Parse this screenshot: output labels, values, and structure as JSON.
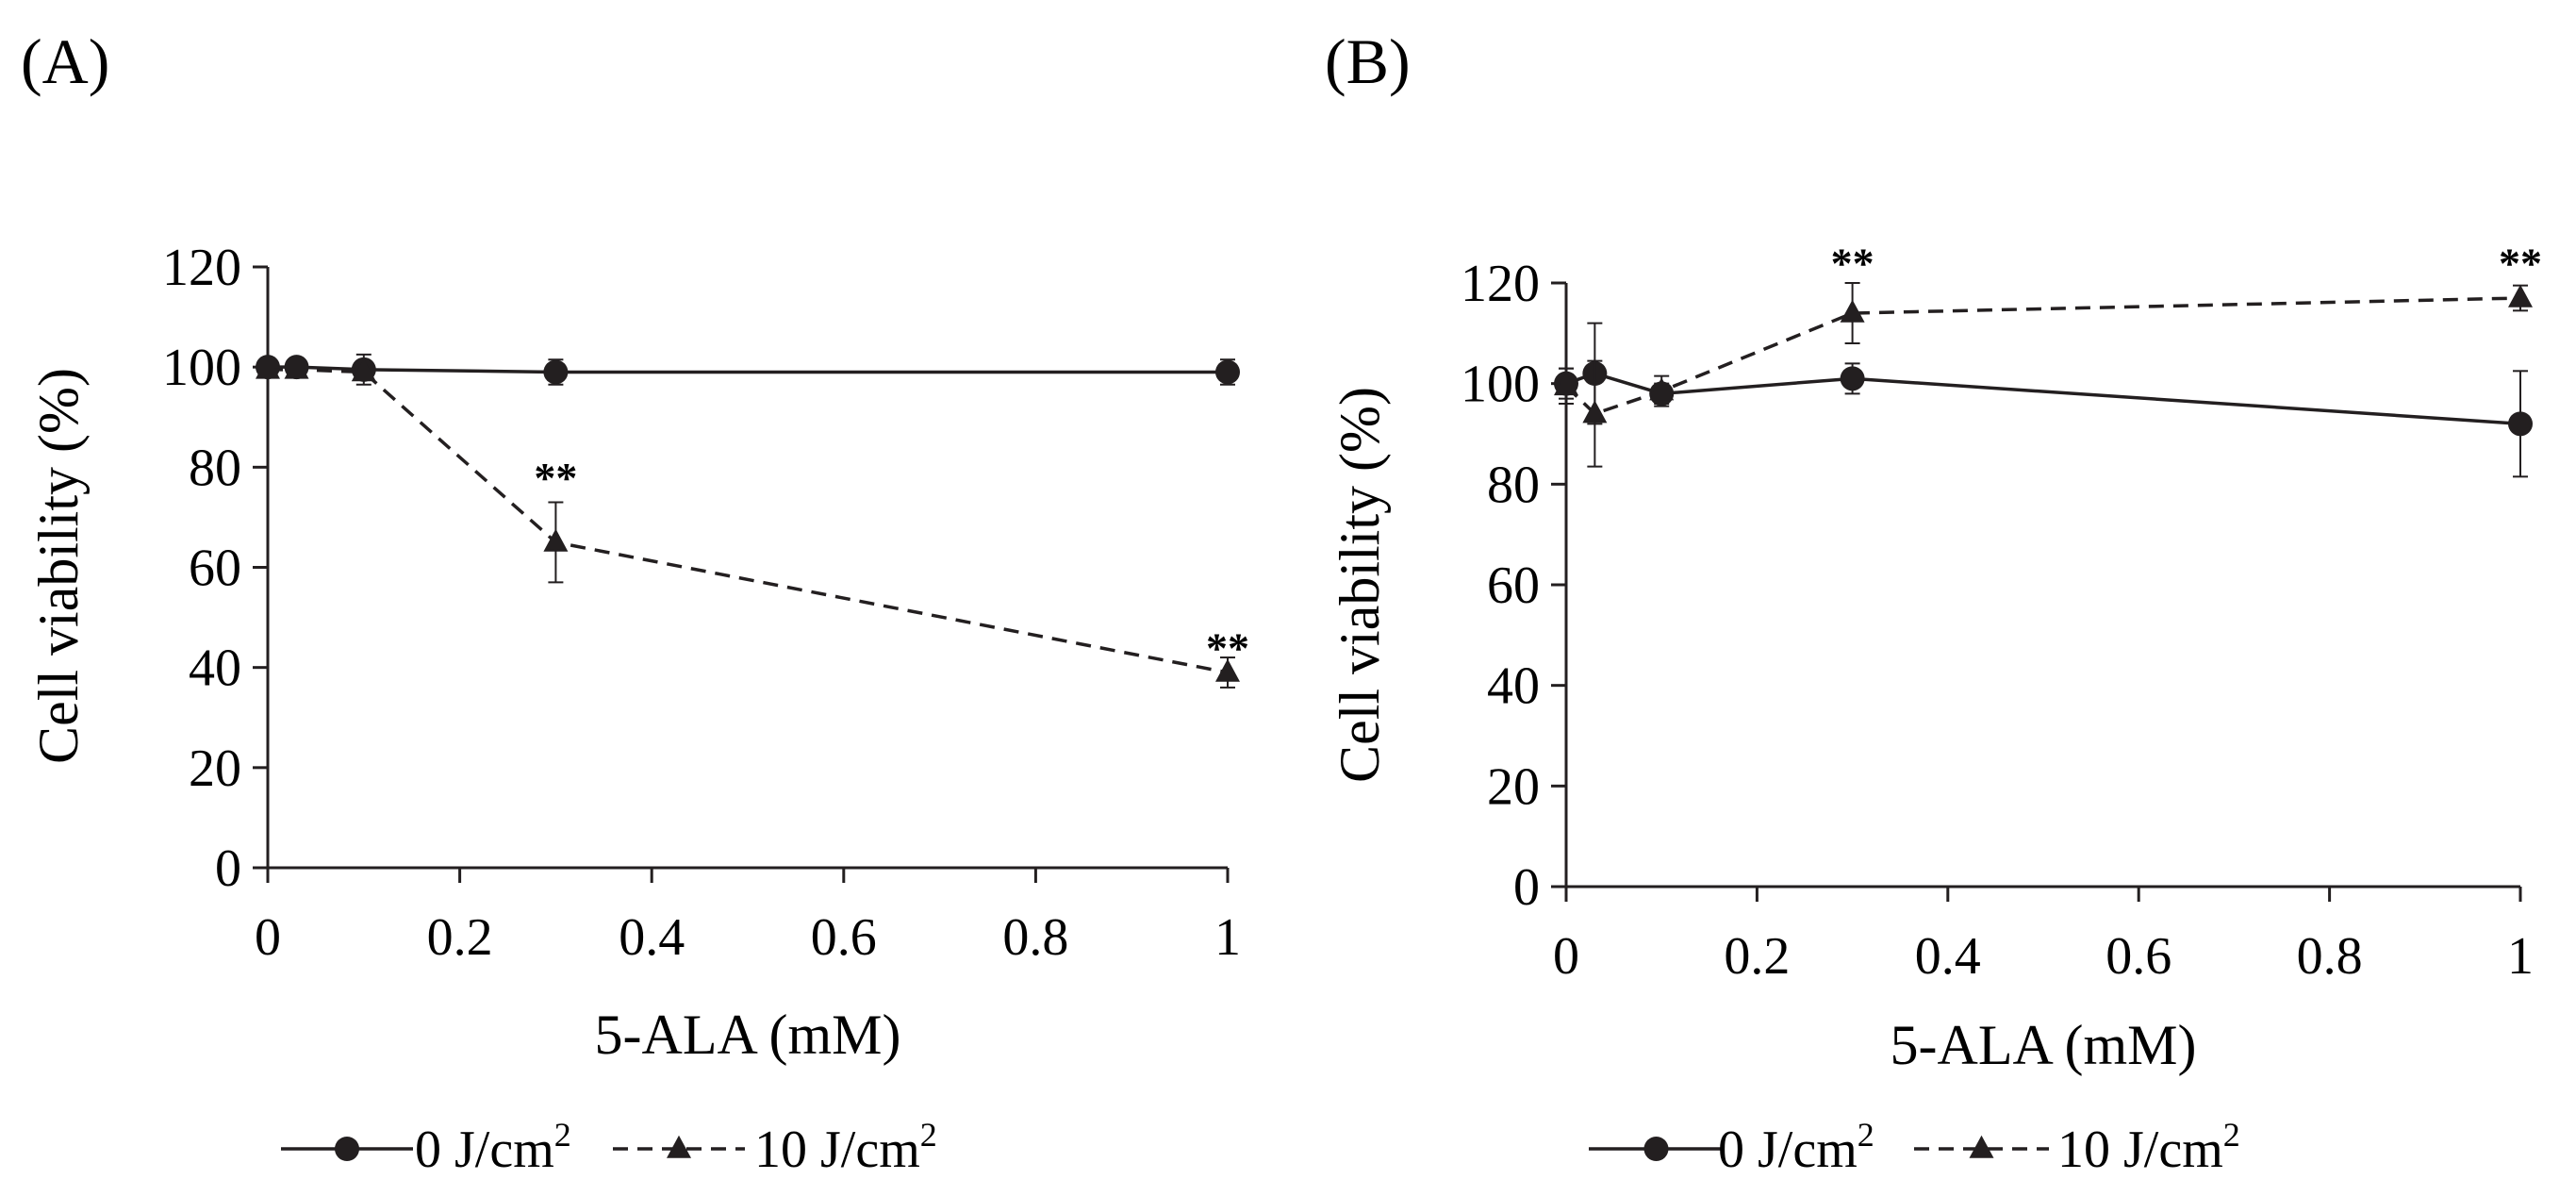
{
  "chart_data": [
    {
      "panel_label": "(A)",
      "type": "line",
      "xlabel": "5-ALA (mM)",
      "ylabel": "Cell viability (%)",
      "xlim": [
        0,
        1
      ],
      "ylim": [
        0,
        120
      ],
      "x_ticks": [
        0,
        0.2,
        0.4,
        0.6,
        0.8,
        1
      ],
      "x_tick_labels": [
        "0",
        "0.2",
        "0.4",
        "0.6",
        "0.8",
        "1"
      ],
      "y_ticks": [
        0,
        20,
        40,
        60,
        80,
        100,
        120
      ],
      "y_tick_labels": [
        "0",
        "20",
        "40",
        "60",
        "80",
        "100",
        "120"
      ],
      "series": [
        {
          "name": "0 J/cm2",
          "marker": "circle",
          "line": "solid",
          "x": [
            0,
            0.03,
            0.1,
            0.3,
            1
          ],
          "values": [
            100,
            100,
            99.5,
            99,
            99
          ],
          "errors": [
            1,
            1,
            3,
            2.5,
            2.5
          ]
        },
        {
          "name": "10 J/cm2",
          "marker": "triangle",
          "line": "dashed",
          "x": [
            0,
            0.03,
            0.1,
            0.3,
            1
          ],
          "values": [
            99.5,
            99.5,
            99,
            65,
            39
          ],
          "errors": [
            1,
            1,
            1.5,
            8,
            3
          ]
        }
      ],
      "annotations": [
        {
          "text": "**",
          "x": 0.3,
          "y": 78
        },
        {
          "text": "**",
          "x": 1,
          "y": 44
        }
      ],
      "legend": {
        "position": "bottom",
        "entries": [
          {
            "label": "0 J/cm",
            "sup": "2"
          },
          {
            "label": "10 J/cm",
            "sup": "2"
          }
        ]
      }
    },
    {
      "panel_label": "(B)",
      "type": "line",
      "xlabel": "5-ALA (mM)",
      "ylabel": "Cell viability (%)",
      "xlim": [
        0,
        1
      ],
      "ylim": [
        0,
        120
      ],
      "x_ticks": [
        0,
        0.2,
        0.4,
        0.6,
        0.8,
        1
      ],
      "x_tick_labels": [
        "0",
        "0.2",
        "0.4",
        "0.6",
        "0.8",
        "1"
      ],
      "y_ticks": [
        0,
        20,
        40,
        60,
        80,
        100,
        120
      ],
      "y_tick_labels": [
        "0",
        "20",
        "40",
        "60",
        "80",
        "100",
        "120"
      ],
      "series": [
        {
          "name": "0 J/cm2",
          "marker": "circle",
          "line": "solid",
          "x": [
            0,
            0.03,
            0.1,
            0.3,
            1
          ],
          "values": [
            100,
            102,
            98,
            101,
            92
          ],
          "errors": [
            3,
            10,
            2,
            3,
            10.5
          ]
        },
        {
          "name": "10 J/cm2",
          "marker": "triangle",
          "line": "dashed",
          "x": [
            0,
            0.03,
            0.1,
            0.3,
            1
          ],
          "values": [
            99.5,
            94,
            98.5,
            114,
            117
          ],
          "errors": [
            3.5,
            10.5,
            3,
            6,
            2.5
          ]
        }
      ],
      "annotations": [
        {
          "text": "**",
          "x": 0.3,
          "y": 124
        },
        {
          "text": "**",
          "x": 1,
          "y": 124
        }
      ],
      "legend": {
        "position": "bottom",
        "entries": [
          {
            "label": "0 J/cm",
            "sup": "2"
          },
          {
            "label": "10 J/cm",
            "sup": "2"
          }
        ]
      }
    }
  ]
}
